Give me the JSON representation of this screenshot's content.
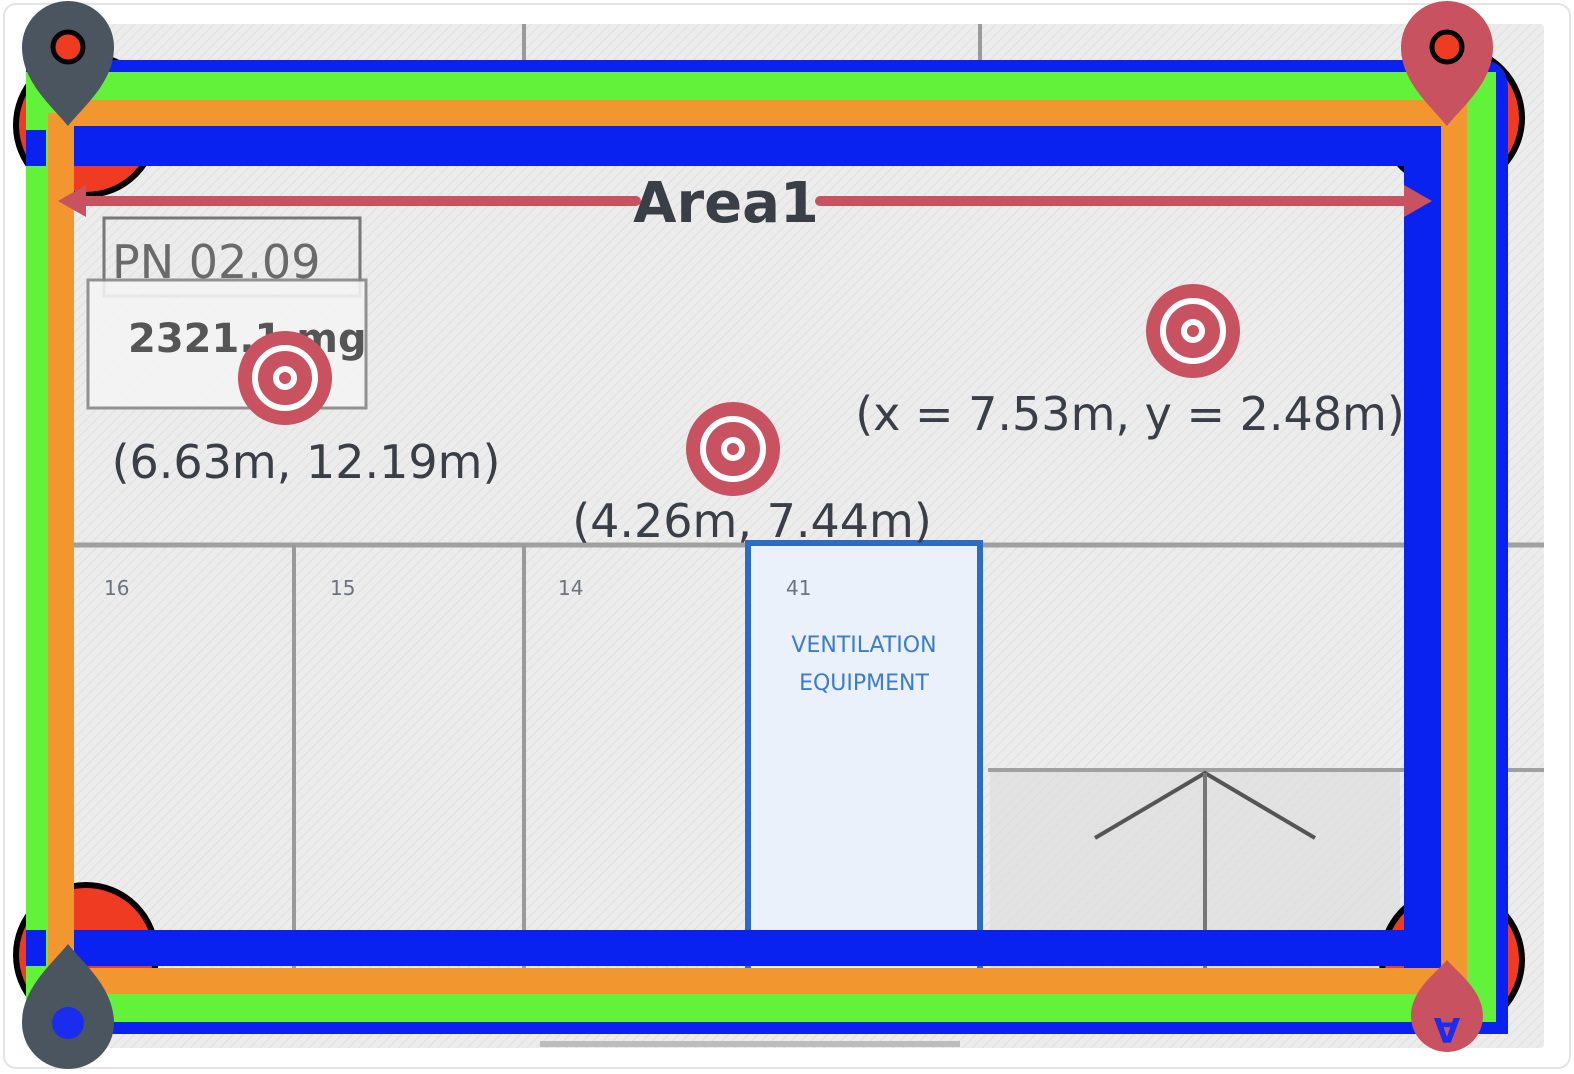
{
  "map": {
    "area_label": "Area1",
    "colors": {
      "outer_blue": "#0a22f0",
      "green": "#63f23a",
      "orange": "#f2962f",
      "marker": "#c8525f",
      "pin_dark": "#4a5560",
      "anchor_red": "#ee3b21"
    },
    "background_text": {
      "room_code": "PN 02.09",
      "room_area": "2321.1 mg",
      "bay_labels": [
        "16",
        "15",
        "14",
        "41"
      ],
      "room_caption_line1": "VENTILATION",
      "room_caption_line2": "EQUIPMENT"
    },
    "targets": [
      {
        "name": "target-1",
        "label": "(6.63m, 12.19m)"
      },
      {
        "name": "target-2",
        "label": "(4.26m, 7.44m)"
      },
      {
        "name": "target-3",
        "label": "(x = 7.53m, y = 2.48m)"
      }
    ],
    "anchor_pins": [
      {
        "name": "pin-top-left",
        "color": "pin_dark",
        "icon": "dot"
      },
      {
        "name": "pin-top-right",
        "color": "marker",
        "icon": "dot"
      },
      {
        "name": "pin-bottom-left",
        "color": "pin_dark",
        "icon": "dot"
      },
      {
        "name": "pin-bottom-right",
        "color": "marker",
        "icon": "rotated-A",
        "glyph": "A"
      }
    ]
  }
}
